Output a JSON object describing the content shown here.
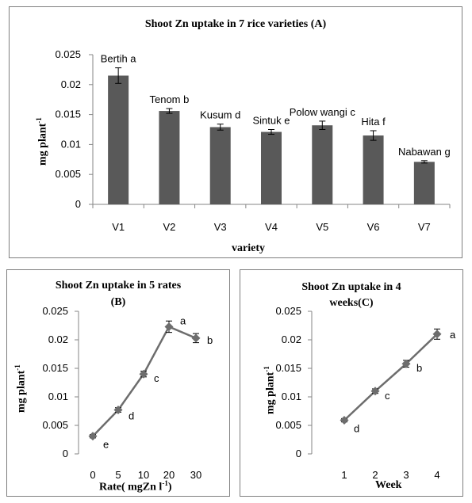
{
  "chart_data": [
    {
      "type": "bar",
      "title": "Shoot Zn uptake in 7 rice varieties (A)",
      "xlabel": "variety",
      "ylabel": "mg plant",
      "ylabel_sup": "-1",
      "ylim": [
        0,
        0.025
      ],
      "yticks": [
        "0",
        "0.005",
        "0.01",
        "0.015",
        "0.02",
        "0.025"
      ],
      "categories": [
        "V1",
        "V2",
        "V3",
        "V4",
        "V5",
        "V6",
        "V7"
      ],
      "values": [
        0.0215,
        0.0156,
        0.0129,
        0.0121,
        0.0132,
        0.0115,
        0.0071
      ],
      "errors": [
        0.0013,
        0.0004,
        0.0005,
        0.0004,
        0.0007,
        0.0008,
        0.0002
      ],
      "labels": [
        "Bertih a",
        "Tenom b",
        "Kusum d",
        "Sintuk e",
        "Polow wangi c",
        "Hita f",
        "Nabawan g"
      ],
      "color": "#595959",
      "grid": false
    },
    {
      "type": "line",
      "title": "Shoot Zn uptake in 5 rates",
      "title_line2": "(B)",
      "xlabel": "Rate( mgZn l",
      "xlabel_sup": "-1",
      "xlabel_end": ")",
      "ylabel": "mg plant",
      "ylabel_sup": "-1",
      "ylim": [
        0,
        0.025
      ],
      "yticks": [
        "0",
        "0.005",
        "0.01",
        "0.015",
        "0.02",
        "0.025"
      ],
      "x": [
        "0",
        "5",
        "10",
        "20",
        "30"
      ],
      "values": [
        0.0031,
        0.0077,
        0.014,
        0.0223,
        0.0203
      ],
      "errors": [
        0.0003,
        0.0004,
        0.0005,
        0.001,
        0.0008
      ],
      "labels": [
        "e",
        "d",
        "c",
        "a",
        "b"
      ],
      "color": "#6d6d6d",
      "marker": "diamond",
      "grid": false
    },
    {
      "type": "line",
      "title": "Shoot Zn uptake in  4",
      "title_line2": "weeks(C)",
      "xlabel": "Week",
      "ylabel": "mg plant",
      "ylabel_sup": "-1",
      "ylim": [
        0,
        0.025
      ],
      "yticks": [
        "0",
        "0.005",
        "0.01",
        "0.015",
        "0.02",
        "0.025"
      ],
      "x": [
        "1",
        "2",
        "3",
        "4"
      ],
      "values": [
        0.0059,
        0.011,
        0.0158,
        0.021
      ],
      "errors": [
        0.0003,
        0.0004,
        0.0006,
        0.0009
      ],
      "labels": [
        "d",
        "c",
        "b",
        "a"
      ],
      "color": "#6d6d6d",
      "marker": "diamond",
      "grid": false
    }
  ]
}
